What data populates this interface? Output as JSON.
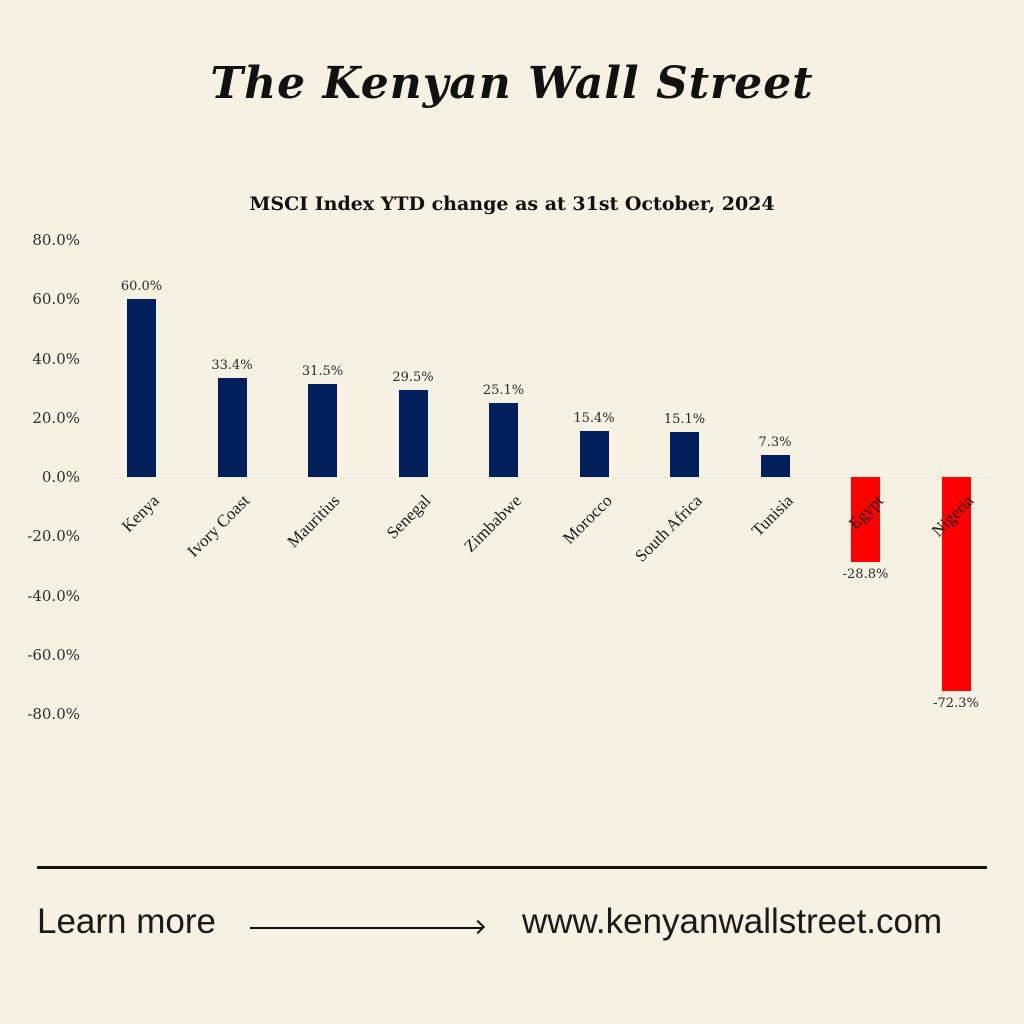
{
  "brand": {
    "masthead": "The Kenyan Wall Street"
  },
  "footer": {
    "learn_more": "Learn more",
    "website": "www.kenyanwallstreet.com"
  },
  "colors": {
    "positive": "#001f5b",
    "negative": "#ff0000",
    "background": "#f6f1e3"
  },
  "chart_data": {
    "type": "bar",
    "title": "MSCI Index YTD change as at 31st October, 2024",
    "xlabel": "",
    "ylabel": "",
    "ylim": [
      -80,
      80
    ],
    "yticks": [
      "80.0%",
      "60.0%",
      "40.0%",
      "20.0%",
      "0.0%",
      "-20.0%",
      "-40.0%",
      "-60.0%",
      "-80.0%"
    ],
    "grid": false,
    "legend": null,
    "categories": [
      "Kenya",
      "Ivory Coast",
      "Mauritius",
      "Senegal",
      "Zimbabwe",
      "Morocco",
      "South Africa",
      "Tunisia",
      "Egypt",
      "Nigeria"
    ],
    "values": [
      60.0,
      33.4,
      31.5,
      29.5,
      25.1,
      15.4,
      15.1,
      7.3,
      -28.8,
      -72.3
    ],
    "value_labels": [
      "60.0%",
      "33.4%",
      "31.5%",
      "29.5%",
      "25.1%",
      "15.4%",
      "15.1%",
      "7.3%",
      "-28.8%",
      "-72.3%"
    ]
  }
}
